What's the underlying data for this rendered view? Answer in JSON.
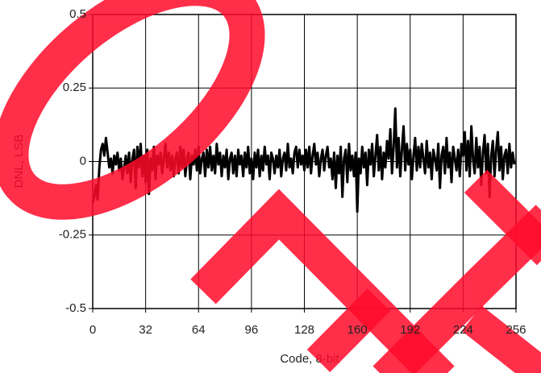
{
  "chart_data": {
    "type": "line",
    "x_label": "Code, 8-bit",
    "y_label": "DNL, LSB",
    "xlim": [
      0,
      256
    ],
    "xticks": [
      0,
      32,
      64,
      96,
      128,
      160,
      192,
      224,
      256
    ],
    "ylim": [
      -0.5,
      0.5
    ],
    "yticks": [
      0.5,
      0.25,
      0,
      -0.25,
      -0.5
    ],
    "grid": true,
    "x": [
      0,
      1,
      2,
      3,
      4,
      5,
      6,
      7,
      8,
      9,
      10,
      11,
      12,
      13,
      14,
      15,
      16,
      17,
      18,
      19,
      20,
      21,
      22,
      23,
      24,
      25,
      26,
      27,
      28,
      29,
      30,
      31,
      32,
      33,
      34,
      35,
      36,
      37,
      38,
      39,
      40,
      41,
      42,
      43,
      44,
      45,
      46,
      47,
      48,
      49,
      50,
      51,
      52,
      53,
      54,
      55,
      56,
      57,
      58,
      59,
      60,
      61,
      62,
      63,
      64,
      65,
      66,
      67,
      68,
      69,
      70,
      71,
      72,
      73,
      74,
      75,
      76,
      77,
      78,
      79,
      80,
      81,
      82,
      83,
      84,
      85,
      86,
      87,
      88,
      89,
      90,
      91,
      92,
      93,
      94,
      95,
      96,
      97,
      98,
      99,
      100,
      101,
      102,
      103,
      104,
      105,
      106,
      107,
      108,
      109,
      110,
      111,
      112,
      113,
      114,
      115,
      116,
      117,
      118,
      119,
      120,
      121,
      122,
      123,
      124,
      125,
      126,
      127,
      128,
      129,
      130,
      131,
      132,
      133,
      134,
      135,
      136,
      137,
      138,
      139,
      140,
      141,
      142,
      143,
      144,
      145,
      146,
      147,
      148,
      149,
      150,
      151,
      152,
      153,
      154,
      155,
      156,
      157,
      158,
      159,
      160,
      161,
      162,
      163,
      164,
      165,
      166,
      167,
      168,
      169,
      170,
      171,
      172,
      173,
      174,
      175,
      176,
      177,
      178,
      179,
      180,
      181,
      182,
      183,
      184,
      185,
      186,
      187,
      188,
      189,
      190,
      191,
      192,
      193,
      194,
      195,
      196,
      197,
      198,
      199,
      200,
      201,
      202,
      203,
      204,
      205,
      206,
      207,
      208,
      209,
      210,
      211,
      212,
      213,
      214,
      215,
      216,
      217,
      218,
      219,
      220,
      221,
      222,
      223,
      224,
      225,
      226,
      227,
      228,
      229,
      230,
      231,
      232,
      233,
      234,
      235,
      236,
      237,
      238,
      239,
      240,
      241,
      242,
      243,
      244,
      245,
      246,
      247,
      248,
      249,
      250,
      251,
      252,
      253,
      254,
      255
    ],
    "series": [
      {
        "color": "#000000",
        "values": [
          -0.14,
          -0.12,
          -0.08,
          -0.13,
          -0.02,
          0.04,
          0.06,
          0.02,
          0.08,
          0.03,
          -0.02,
          0.01,
          -0.04,
          0.02,
          -0.01,
          0.03,
          -0.03,
          0.01,
          -0.06,
          -0.02,
          0.02,
          -0.04,
          0.03,
          -0.07,
          0.01,
          0.04,
          -0.09,
          0.05,
          -0.02,
          0.06,
          -0.05,
          0.02,
          -0.07,
          0.04,
          -0.11,
          0.01,
          -0.03,
          0.05,
          -0.06,
          0.02,
          -0.01,
          0.03,
          -0.04,
          0.01,
          0.06,
          -0.02,
          0.03,
          -0.03,
          0.02,
          -0.05,
          0.01,
          0.03,
          -0.04,
          0.05,
          -0.02,
          0.04,
          -0.05,
          0.01,
          0.03,
          -0.06,
          0.02,
          -0.01,
          0.04,
          -0.03,
          0.05,
          -0.04,
          0.01,
          0.03,
          -0.05,
          0.04,
          -0.02,
          0.05,
          -0.03,
          0.02,
          -0.04,
          0.06,
          -0.01,
          0.03,
          -0.05,
          0.02,
          -0.02,
          0.04,
          -0.06,
          0.01,
          0.03,
          -0.04,
          0.02,
          -0.05,
          0.04,
          -0.01,
          0.02,
          -0.05,
          0.03,
          -0.02,
          0.05,
          -0.04,
          0.01,
          -0.06,
          0.03,
          -0.02,
          0.04,
          -0.05,
          0.02,
          -0.03,
          0.05,
          -0.01,
          0.02,
          -0.06,
          0.03,
          0.01,
          -0.04,
          0.02,
          -0.02,
          0.04,
          -0.05,
          0.01,
          0.03,
          -0.03,
          0.06,
          -0.02,
          0.01,
          -0.04,
          0.03,
          0.05,
          -0.02,
          0.04,
          -0.01,
          0.02,
          -0.03,
          0.04,
          -0.02,
          0.05,
          -0.04,
          0.02,
          0.06,
          -0.01,
          0.03,
          -0.05,
          0.01,
          0.04,
          -0.03,
          0.02,
          0.05,
          -0.02,
          0.01,
          -0.06,
          0.03,
          -0.09,
          0.02,
          -0.04,
          0.05,
          -0.12,
          0.01,
          0.04,
          -0.07,
          0.06,
          -0.03,
          0.02,
          -0.05,
          0.03,
          -0.17,
          0.01,
          -0.04,
          0.05,
          -0.02,
          0.03,
          -0.08,
          0.04,
          -0.01,
          0.06,
          -0.05,
          0.02,
          0.09,
          -0.03,
          0.05,
          -0.06,
          0.03,
          -0.02,
          0.07,
          0.01,
          0.11,
          -0.04,
          0.05,
          0.18,
          -0.02,
          0.08,
          -0.05,
          0.04,
          0.12,
          -0.03,
          0.06,
          -0.01,
          0.04,
          -0.06,
          0.02,
          0.08,
          -0.03,
          0.05,
          -0.02,
          0.06,
          0.01,
          -0.04,
          0.07,
          -0.02,
          0.03,
          -0.06,
          0.04,
          0.01,
          -0.03,
          0.06,
          -0.09,
          0.02,
          0.05,
          -0.04,
          0.08,
          -0.02,
          0.03,
          -0.07,
          0.05,
          0.01,
          -0.03,
          0.04,
          -0.05,
          0.06,
          0.02,
          0.1,
          -0.03,
          0.07,
          -0.05,
          0.12,
          0.01,
          -0.04,
          0.08,
          -0.02,
          0.05,
          -0.08,
          0.03,
          0.09,
          -0.04,
          0.06,
          -0.12,
          0.02,
          0.07,
          -0.05,
          0.04,
          0.1,
          -0.03,
          0.05,
          -0.06,
          0.02,
          0.04,
          -0.04,
          0.06,
          -0.02,
          0.03,
          -0.01
        ]
      }
    ]
  }
}
